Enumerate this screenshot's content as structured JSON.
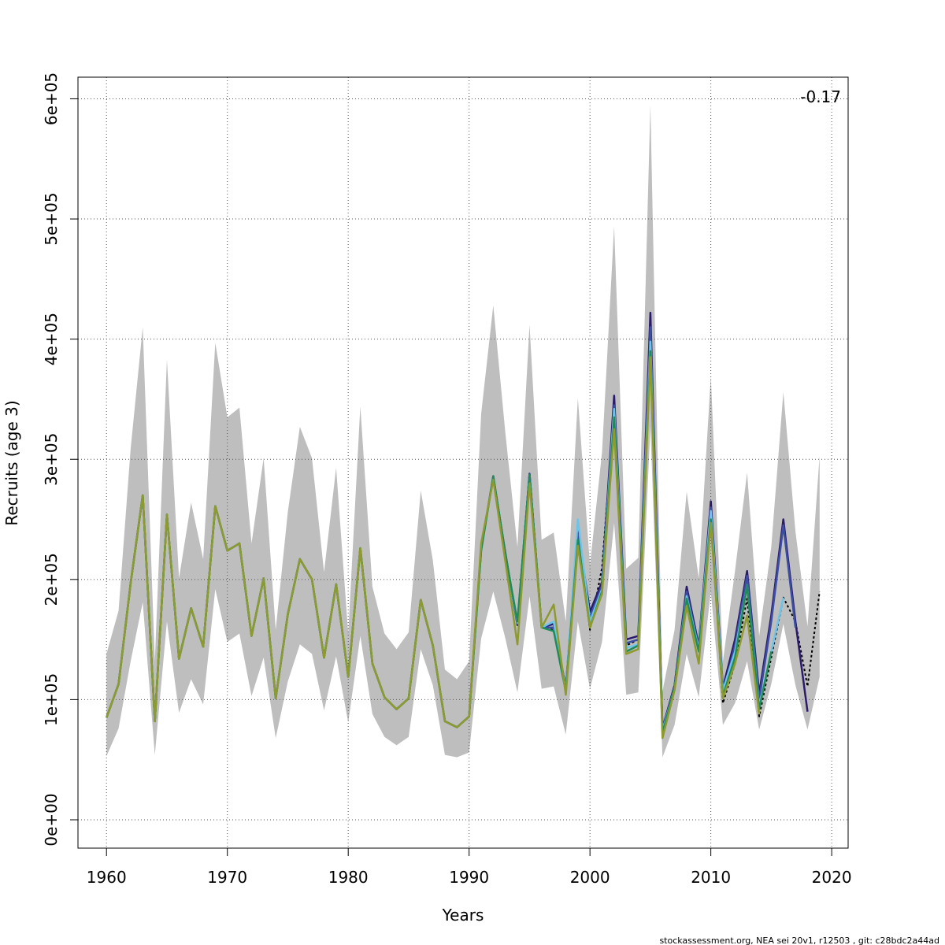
{
  "chart_data": {
    "type": "line",
    "x_label": "Years",
    "y_label": "Recruits (age 3)",
    "annotation": "-0.17",
    "footer": "stockassessment.org, NEA  sei  20v1, r12503 , git: c28bdc2a44ad",
    "grid": true,
    "xlim": [
      1957.64,
      2021.36
    ],
    "xticks": [
      1960,
      1970,
      1980,
      1990,
      2000,
      2010,
      2020
    ],
    "ylim": [
      -23600,
      618000
    ],
    "yticks": [
      {
        "value": 0,
        "label": "0e+00"
      },
      {
        "value": 100000,
        "label": "1e+05"
      },
      {
        "value": 200000,
        "label": "2e+05"
      },
      {
        "value": 300000,
        "label": "3e+05"
      },
      {
        "value": 400000,
        "label": "4e+05"
      },
      {
        "value": 500000,
        "label": "5e+05"
      },
      {
        "value": 600000,
        "label": "6e+05"
      }
    ],
    "x": [
      1960,
      1961,
      1962,
      1963,
      1964,
      1965,
      1966,
      1967,
      1968,
      1969,
      1970,
      1971,
      1972,
      1973,
      1974,
      1975,
      1976,
      1977,
      1978,
      1979,
      1980,
      1981,
      1982,
      1983,
      1984,
      1985,
      1986,
      1987,
      1988,
      1989,
      1990,
      1991,
      1992,
      1993,
      1994,
      1995,
      1996,
      1997,
      1998,
      1999,
      2000,
      2001,
      2002,
      2003,
      2004,
      2005,
      2006,
      2007,
      2008,
      2009,
      2010,
      2011,
      2012,
      2013,
      2014,
      2015,
      2016,
      2017,
      2018,
      2019
    ],
    "band": {
      "color": "#bebebe",
      "upper": [
        138000,
        174000,
        309000,
        410000,
        132000,
        383000,
        201000,
        264000,
        217000,
        397000,
        335000,
        343000,
        230000,
        301000,
        158000,
        256000,
        327000,
        301000,
        206000,
        293000,
        155000,
        344000,
        194000,
        155000,
        142000,
        156000,
        274000,
        216000,
        125000,
        117000,
        132000,
        338000,
        428000,
        322000,
        227000,
        412000,
        233000,
        239000,
        165000,
        351000,
        212000,
        306000,
        494000,
        209000,
        218000,
        595000,
        107000,
        158000,
        273000,
        201000,
        369000,
        132000,
        207000,
        289000,
        153000,
        227000,
        356000,
        240000,
        161000,
        303000
      ],
      "lower": [
        53000,
        76000,
        132000,
        181000,
        54000,
        165000,
        89000,
        117000,
        96000,
        192000,
        148000,
        155000,
        103000,
        135000,
        68000,
        115000,
        146000,
        138000,
        91000,
        136000,
        81000,
        153000,
        88000,
        69000,
        62000,
        69000,
        142000,
        112000,
        54000,
        52000,
        56000,
        151000,
        190000,
        151000,
        106000,
        186000,
        109000,
        111000,
        71000,
        165000,
        109000,
        148000,
        247000,
        104000,
        106000,
        327000,
        52000,
        79000,
        138000,
        102000,
        190000,
        79000,
        97000,
        132000,
        75000,
        113000,
        163000,
        112000,
        75000,
        119000
      ]
    },
    "series": [
      {
        "color": "#000000",
        "dashed": true,
        "values": [
          85000,
          113000,
          197000,
          270000,
          82000,
          254000,
          134000,
          176000,
          144000,
          261000,
          224000,
          230000,
          153000,
          201000,
          101000,
          171000,
          217000,
          200000,
          135000,
          196000,
          119000,
          226000,
          130000,
          102000,
          92000,
          101000,
          183000,
          145000,
          82000,
          77000,
          86000,
          224000,
          286000,
          220000,
          165000,
          287000,
          160000,
          158000,
          107000,
          233000,
          158000,
          210000,
          342000,
          145000,
          150000,
          401000,
          73000,
          112000,
          184000,
          143000,
          256000,
          97000,
          130000,
          184000,
          86000,
          135000,
          185000,
          165000,
          111000,
          190000
        ]
      },
      {
        "color": "#2c1b6b",
        "values": [
          85000,
          113000,
          197000,
          270000,
          82000,
          254000,
          134000,
          176000,
          144000,
          261000,
          224000,
          230000,
          153000,
          201000,
          101000,
          171000,
          217000,
          200000,
          135000,
          196000,
          119000,
          226000,
          130000,
          102000,
          92000,
          101000,
          183000,
          145000,
          82000,
          77000,
          86000,
          226000,
          285000,
          222000,
          162000,
          288000,
          160000,
          163000,
          110000,
          240000,
          173000,
          198000,
          353000,
          150000,
          153000,
          422000,
          76000,
          112000,
          194000,
          145000,
          265000,
          110000,
          150000,
          207000,
          105000,
          170000,
          250000,
          165000,
          90000,
          null
        ]
      },
      {
        "color": "#3b4ea3",
        "values": [
          85000,
          113000,
          197000,
          270000,
          82000,
          254000,
          134000,
          176000,
          144000,
          261000,
          224000,
          230000,
          153000,
          201000,
          101000,
          171000,
          217000,
          200000,
          135000,
          196000,
          119000,
          226000,
          130000,
          102000,
          92000,
          101000,
          183000,
          145000,
          82000,
          77000,
          86000,
          226000,
          286000,
          221000,
          163000,
          288000,
          160000,
          160000,
          108000,
          237000,
          168000,
          195000,
          345000,
          147000,
          150000,
          410000,
          75000,
          110000,
          190000,
          143000,
          260000,
          105000,
          145000,
          203000,
          100000,
          165000,
          245000,
          160000,
          null,
          null
        ]
      },
      {
        "color": "#6cc4e8",
        "values": [
          85000,
          113000,
          197000,
          270000,
          82000,
          254000,
          134000,
          176000,
          144000,
          261000,
          224000,
          230000,
          153000,
          201000,
          101000,
          171000,
          217000,
          200000,
          135000,
          196000,
          119000,
          226000,
          130000,
          102000,
          92000,
          101000,
          183000,
          145000,
          82000,
          77000,
          86000,
          225000,
          285000,
          220000,
          164000,
          286000,
          160000,
          165000,
          108000,
          250000,
          165000,
          192000,
          342000,
          143000,
          146000,
          398000,
          74000,
          110000,
          186000,
          142000,
          257000,
          108000,
          140000,
          195000,
          95000,
          140000,
          185000,
          null,
          null,
          null
        ]
      },
      {
        "color": "#1f8a5a",
        "values": [
          85000,
          113000,
          197000,
          270000,
          82000,
          254000,
          134000,
          176000,
          144000,
          261000,
          224000,
          230000,
          153000,
          201000,
          101000,
          171000,
          217000,
          200000,
          135000,
          196000,
          119000,
          226000,
          130000,
          102000,
          92000,
          101000,
          183000,
          145000,
          82000,
          77000,
          86000,
          224000,
          286000,
          221000,
          165000,
          287000,
          160000,
          157000,
          107000,
          233000,
          160000,
          190000,
          335000,
          140000,
          145000,
          390000,
          72000,
          110000,
          184000,
          140000,
          250000,
          103000,
          135000,
          195000,
          92000,
          140000,
          null,
          null,
          null,
          null
        ]
      },
      {
        "color": "#8f9a2e",
        "values": [
          85000,
          113000,
          197000,
          270000,
          82000,
          254000,
          134000,
          176000,
          144000,
          261000,
          224000,
          230000,
          153000,
          201000,
          101000,
          171000,
          217000,
          200000,
          135000,
          196000,
          119000,
          226000,
          130000,
          102000,
          92000,
          101000,
          183000,
          145000,
          82000,
          77000,
          86000,
          230000,
          283000,
          215000,
          146000,
          280000,
          160000,
          179000,
          104000,
          228000,
          160000,
          188000,
          325000,
          138000,
          142000,
          385000,
          68000,
          108000,
          178000,
          130000,
          247000,
          101000,
          130000,
          170000,
          88000,
          null,
          null,
          null,
          null,
          null
        ]
      }
    ]
  }
}
